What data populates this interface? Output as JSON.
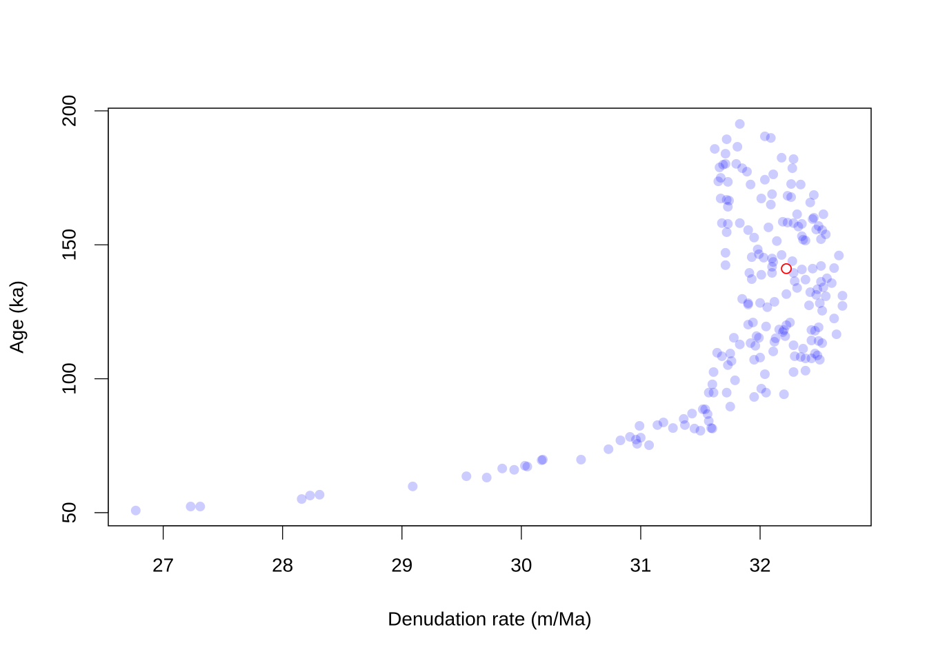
{
  "chart_data": {
    "type": "scatter",
    "xlabel": "Denudation rate (m/Ma)",
    "ylabel": "Age (ka)",
    "xlim": [
      26.54,
      32.93
    ],
    "ylim": [
      45.1,
      201.0
    ],
    "xticks": [
      27,
      28,
      29,
      30,
      31,
      32
    ],
    "yticks": [
      50,
      100,
      150,
      200
    ],
    "series": [
      {
        "color": "#0000ff",
        "hollow": false,
        "x": [
          26.77,
          27.23,
          27.31,
          28.16,
          28.23,
          28.31,
          29.09,
          29.54,
          29.71,
          29.84,
          29.94,
          30.03,
          30.05,
          30.17,
          30.18,
          30.5,
          30.73,
          30.83,
          30.91,
          30.96,
          30.97,
          31.0,
          30.99,
          31.07,
          31.14,
          31.19,
          31.27,
          31.36,
          31.37,
          31.43,
          31.45,
          31.5,
          31.52,
          31.54,
          31.56,
          31.57,
          31.59,
          31.6,
          31.6,
          31.57,
          31.61,
          31.61,
          31.64,
          31.68,
          31.73,
          31.72,
          31.75,
          31.76,
          31.75,
          31.78,
          31.79,
          31.83,
          31.85,
          31.9,
          31.9,
          31.9,
          31.94,
          31.92,
          31.97,
          31.99,
          31.96,
          31.95,
          32.0,
          31.95,
          32.01,
          32.05,
          32.04,
          32.05,
          32.06,
          32.0,
          32.12,
          32.11,
          32.12,
          32.13,
          32.16,
          32.2,
          32.22,
          32.25,
          32.19,
          32.21,
          32.28,
          32.29,
          32.34,
          32.36,
          32.38,
          32.38,
          32.28,
          32.2,
          32.43,
          32.46,
          32.48,
          32.5,
          32.43,
          32.49,
          32.52,
          32.43,
          32.46,
          32.49,
          32.5,
          32.52,
          32.42,
          32.47,
          32.41,
          32.55,
          32.62,
          32.64,
          32.69,
          32.69,
          32.6,
          32.56,
          32.51,
          32.53,
          32.48,
          32.38,
          32.44,
          32.51,
          32.62,
          32.66,
          32.35,
          32.29,
          32.31,
          32.28,
          32.27,
          32.22,
          32.18,
          32.14,
          32.1,
          32.1,
          32.1,
          32.11,
          32.03,
          32.01,
          31.98,
          31.99,
          31.93,
          31.91,
          31.93,
          31.95,
          31.9,
          31.83,
          32.07,
          32.19,
          32.23,
          32.28,
          32.32,
          32.35,
          32.35,
          32.36,
          32.38,
          32.45,
          32.44,
          32.49,
          32.47,
          32.52,
          32.55,
          32.51,
          32.53,
          32.31,
          32.26,
          32.23,
          32.1,
          32.09,
          32.01,
          32.04,
          32.11,
          32.26,
          32.34,
          32.42,
          32.45,
          32.27,
          32.28,
          32.18,
          32.04,
          32.09,
          31.83,
          31.72,
          31.62,
          31.71,
          31.81,
          31.8,
          31.71,
          31.69,
          31.66,
          31.85,
          31.89,
          31.67,
          31.65,
          31.73,
          31.92,
          31.67,
          31.72,
          31.74,
          31.73,
          31.68,
          31.73,
          31.72,
          31.71,
          31.71
        ],
        "values": [
          50.8,
          52.3,
          52.3,
          55.1,
          56.4,
          56.7,
          59.8,
          63.6,
          63.1,
          66.5,
          66.0,
          67.5,
          67.2,
          69.6,
          69.8,
          69.8,
          73.7,
          77.0,
          78.3,
          77.3,
          75.7,
          78.0,
          82.4,
          75.2,
          82.7,
          83.7,
          81.6,
          85.0,
          82.7,
          87.0,
          81.4,
          80.6,
          88.6,
          88.6,
          86.8,
          84.2,
          81.6,
          81.4,
          97.9,
          94.8,
          94.8,
          102.5,
          109.7,
          108.4,
          105.1,
          94.8,
          89.6,
          106.6,
          109.4,
          115.3,
          99.4,
          112.8,
          129.8,
          128.2,
          127.7,
          120.2,
          121.0,
          113.3,
          115.9,
          115.3,
          112.3,
          107.1,
          107.9,
          93.2,
          96.3,
          94.8,
          101.7,
          119.5,
          126.7,
          128.3,
          128.7,
          110.2,
          113.8,
          115.1,
          118.4,
          118.2,
          120.0,
          121.0,
          117.4,
          115.9,
          112.5,
          108.4,
          108.1,
          111.2,
          107.6,
          103.0,
          102.5,
          94.2,
          107.6,
          109.4,
          108.7,
          107.1,
          114.3,
          114.1,
          113.3,
          118.2,
          117.9,
          119.2,
          128.2,
          125.4,
          132.3,
          131.3,
          127.4,
          130.8,
          122.5,
          116.6,
          131.0,
          127.2,
          135.7,
          137.5,
          136.2,
          134.1,
          133.4,
          137.0,
          141.1,
          142.1,
          141.3,
          146.0,
          140.8,
          136.4,
          133.9,
          139.5,
          143.9,
          131.6,
          146.2,
          151.4,
          139.5,
          141.8,
          144.9,
          143.6,
          145.2,
          138.8,
          148.3,
          146.5,
          145.4,
          139.5,
          137.2,
          152.7,
          155.5,
          158.1,
          156.5,
          158.6,
          158.3,
          158.1,
          156.8,
          157.8,
          153.2,
          151.9,
          151.6,
          160.1,
          159.6,
          157.0,
          155.7,
          155.5,
          153.9,
          152.1,
          161.4,
          161.4,
          167.8,
          168.3,
          168.9,
          165.0,
          167.3,
          174.3,
          176.3,
          172.7,
          172.5,
          165.8,
          168.6,
          178.6,
          182.0,
          182.5,
          190.5,
          189.9,
          195.1,
          189.4,
          185.8,
          184.0,
          186.6,
          180.2,
          180.2,
          179.9,
          178.9,
          178.6,
          177.3,
          175.0,
          173.7,
          173.5,
          172.5,
          167.3,
          166.8,
          166.5,
          164.2,
          158.1,
          157.8,
          154.7,
          147.0,
          142.4
        ]
      },
      {
        "color": "#ff0000",
        "hollow": true,
        "x": [
          32.22
        ],
        "values": [
          141.1
        ]
      }
    ]
  }
}
